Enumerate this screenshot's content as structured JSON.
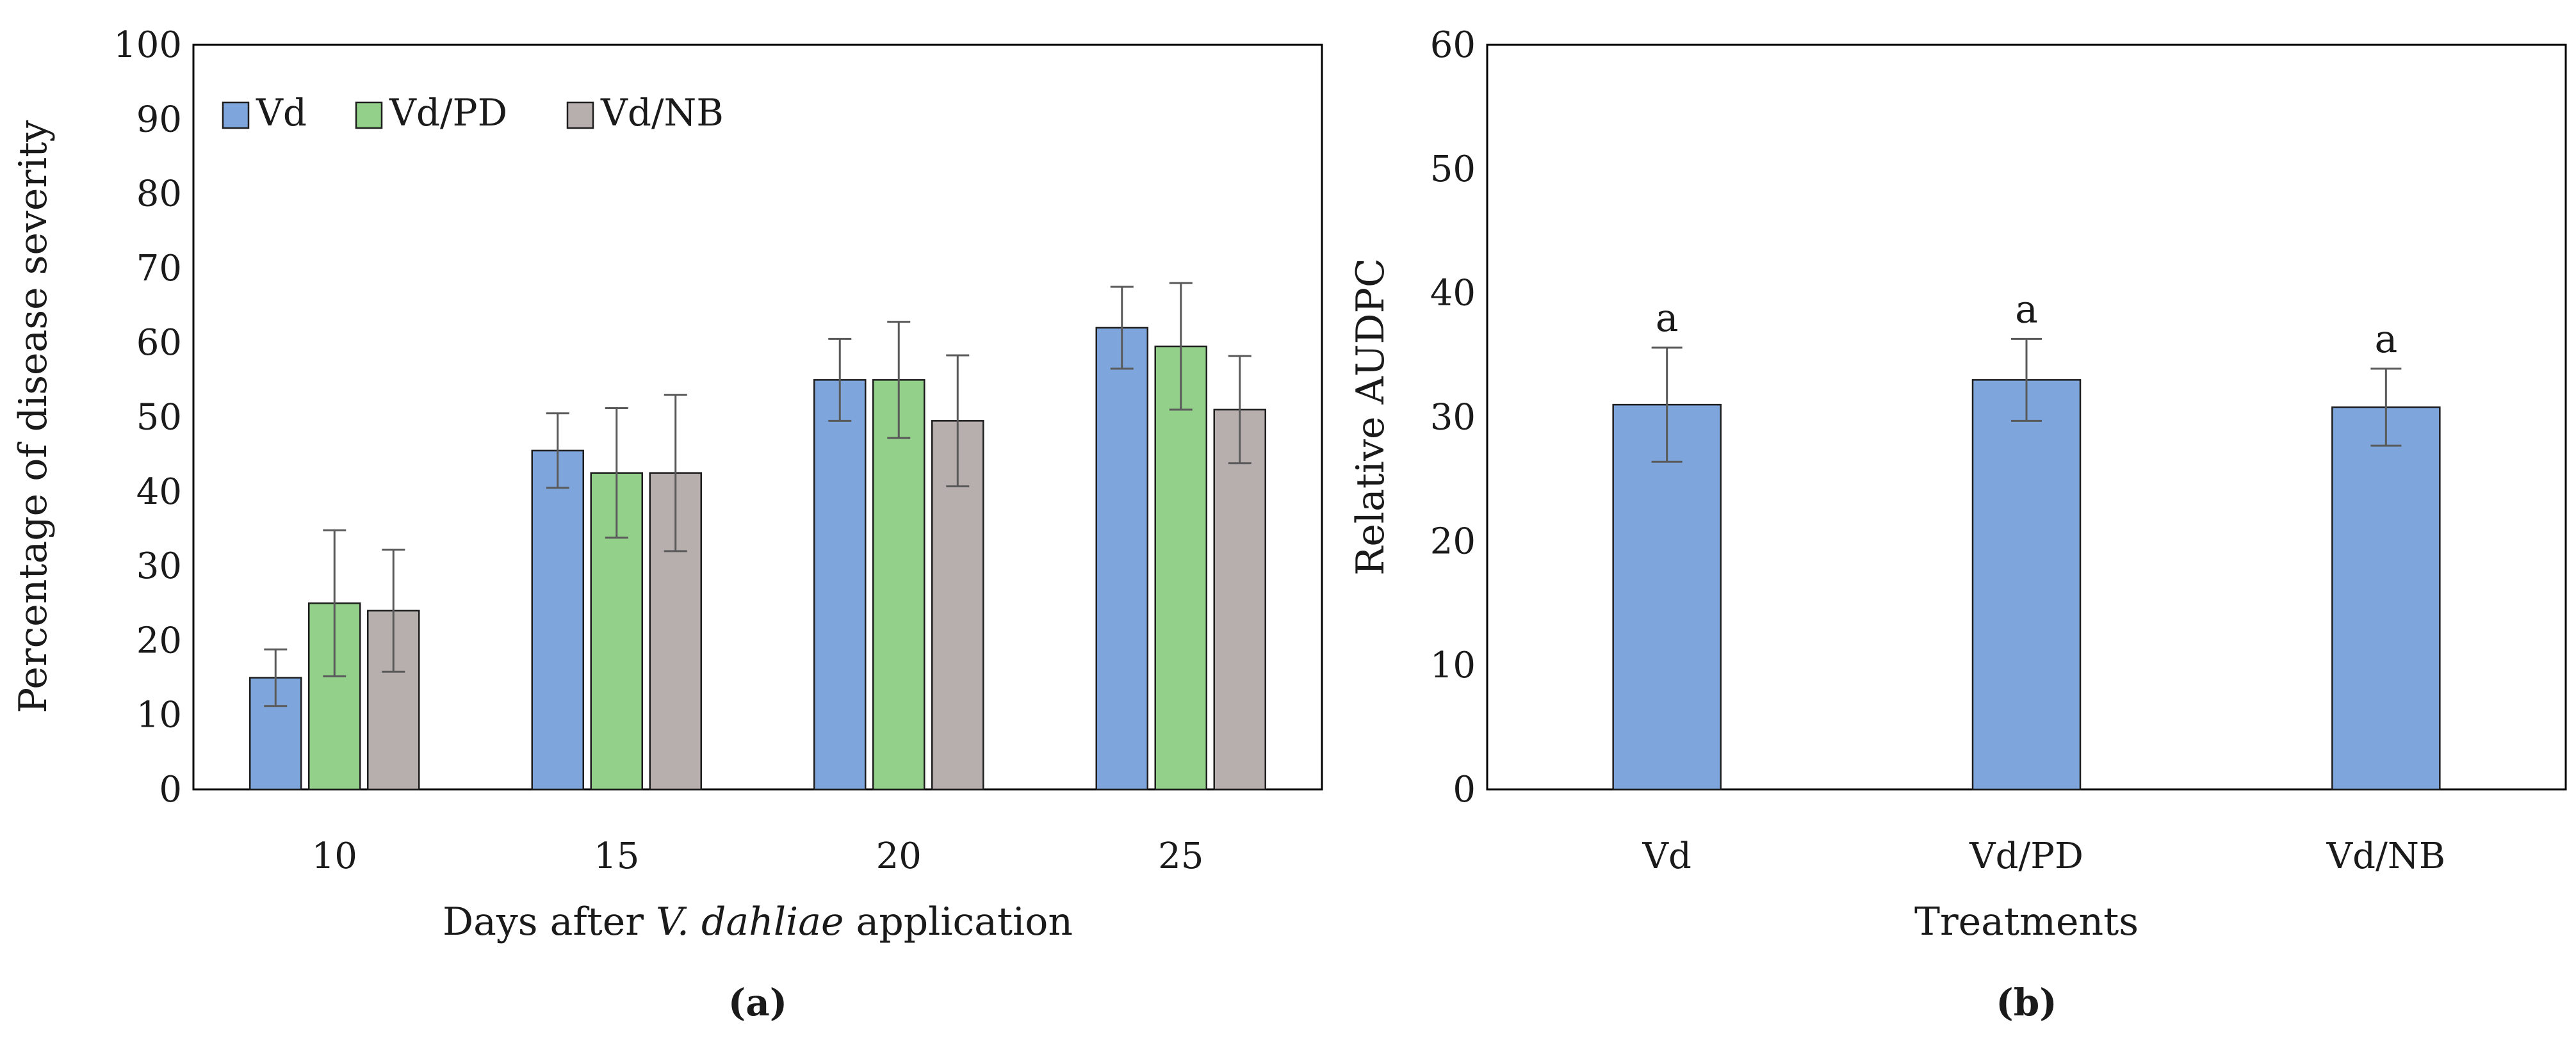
{
  "chart_data": [
    {
      "type": "bar",
      "panel_label": "(a)",
      "title": "",
      "xlabel_parts": [
        "Days after ",
        "V. dahliae",
        " application"
      ],
      "ylabel": "Percentage of disease severity",
      "categories": [
        "10",
        "15",
        "20",
        "25"
      ],
      "ylim": [
        0,
        100
      ],
      "yticks": [
        0,
        10,
        20,
        30,
        40,
        50,
        60,
        70,
        80,
        90,
        100
      ],
      "legend_position": "top-left",
      "grid": false,
      "series": [
        {
          "name": "Vd",
          "color": "#7ea6dc",
          "values": [
            15,
            45.5,
            55,
            62
          ],
          "errors": [
            3.8,
            5,
            5.5,
            5.5
          ]
        },
        {
          "name": "Vd/PD",
          "color": "#93d08a",
          "values": [
            25,
            42.5,
            55,
            59.5
          ],
          "errors": [
            9.8,
            8.7,
            7.8,
            8.5
          ]
        },
        {
          "name": "Vd/NB",
          "color": "#b7aeae",
          "values": [
            24,
            42.5,
            49.5,
            51
          ],
          "errors": [
            8.2,
            10.5,
            8.8,
            7.2
          ]
        }
      ]
    },
    {
      "type": "bar",
      "panel_label": "(b)",
      "title": "",
      "xlabel": "Treatments",
      "ylabel": "Relative AUDPC",
      "categories": [
        "Vd",
        "Vd/PD",
        "Vd/NB"
      ],
      "ylim": [
        0,
        60
      ],
      "yticks": [
        0,
        10,
        20,
        30,
        40,
        50,
        60
      ],
      "grid": false,
      "series": [
        {
          "name": "Relative AUDPC",
          "color": "#7ea6dc",
          "values": [
            31,
            33,
            30.8
          ],
          "errors": [
            4.6,
            3.3,
            3.1
          ]
        }
      ],
      "annotations": [
        "a",
        "a",
        "a"
      ]
    }
  ]
}
